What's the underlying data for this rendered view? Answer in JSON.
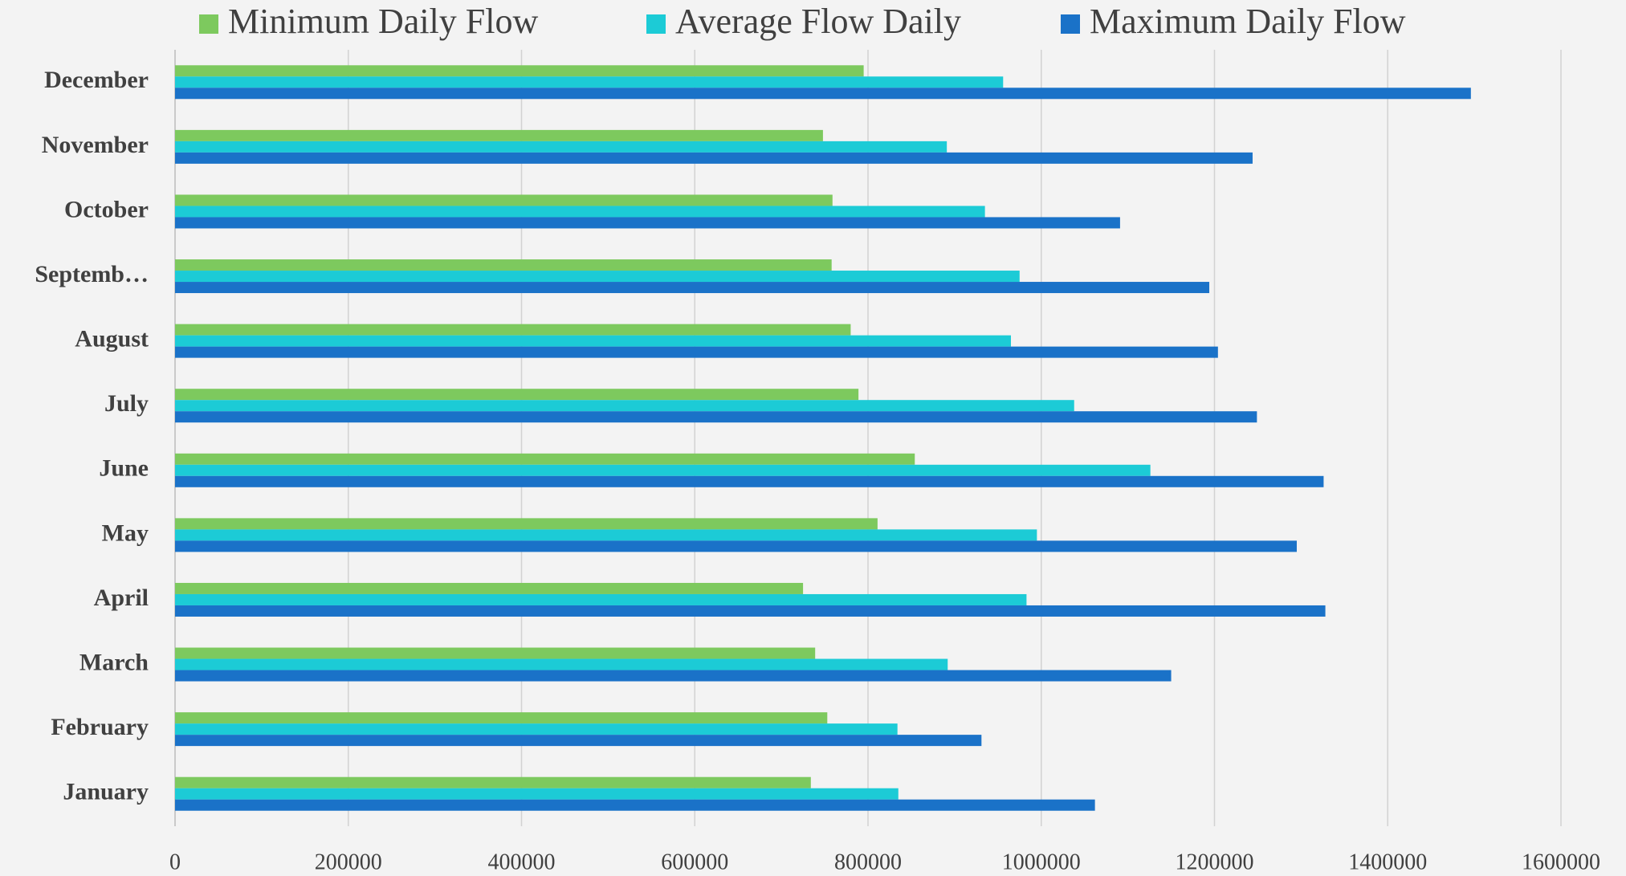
{
  "chart_data": {
    "type": "hbar",
    "categories": [
      "January",
      "February",
      "March",
      "April",
      "May",
      "June",
      "July",
      "August",
      "Septemb…",
      "October",
      "November",
      "December"
    ],
    "series": [
      {
        "name": "Minimum Daily Flow",
        "color": "#7dc95e",
        "values": [
          734000,
          753000,
          739000,
          725000,
          811000,
          854000,
          789000,
          780000,
          758000,
          759000,
          748000,
          795000
        ]
      },
      {
        "name": "Average Flow Daily",
        "color": "#1ccbd6",
        "values": [
          835000,
          834000,
          892000,
          983000,
          995000,
          1126000,
          1038000,
          965000,
          975000,
          935000,
          891000,
          956000
        ]
      },
      {
        "name": "Maximum Daily Flow",
        "color": "#1a72c8",
        "values": [
          1062000,
          931000,
          1150000,
          1328000,
          1295000,
          1326000,
          1249000,
          1204000,
          1194000,
          1091000,
          1244000,
          1496000
        ]
      }
    ],
    "xlim": [
      0,
      1600000
    ],
    "xticks": [
      0,
      200000,
      400000,
      600000,
      800000,
      1000000,
      1200000,
      1400000,
      1600000
    ],
    "grid": true,
    "legend": "top"
  }
}
